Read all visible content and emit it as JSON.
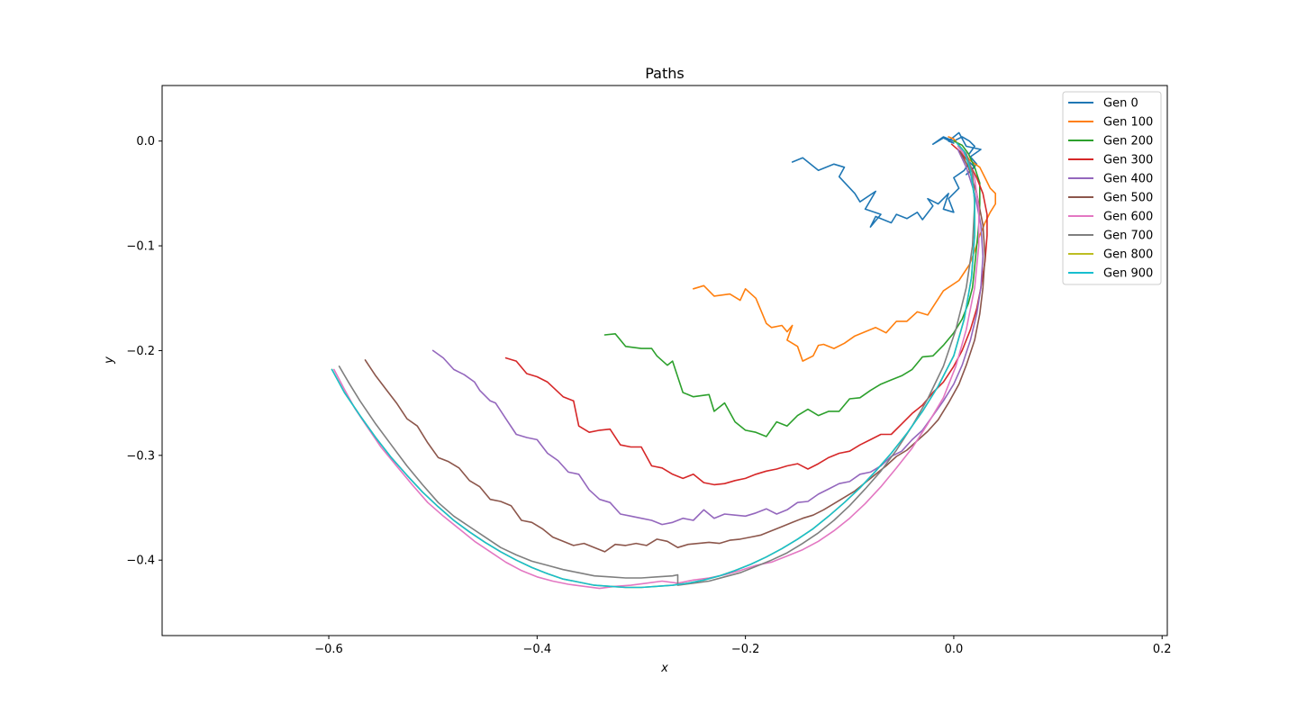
{
  "chart_data": {
    "type": "line",
    "title": "Paths",
    "xlabel": "x",
    "ylabel": "y",
    "xlim": [
      -0.76,
      0.205
    ],
    "ylim": [
      -0.472,
      0.053
    ],
    "xticks": [
      -0.6,
      -0.4,
      -0.2,
      0.0,
      0.2
    ],
    "xtick_labels": [
      "−0.6",
      "−0.4",
      "−0.2",
      "0.0",
      "0.2"
    ],
    "yticks": [
      0.0,
      -0.1,
      -0.2,
      -0.3,
      -0.4
    ],
    "ytick_labels": [
      "0.0",
      "−0.1",
      "−0.2",
      "−0.3",
      "−0.4"
    ],
    "grid": false,
    "legend_position": "top-right",
    "series": [
      {
        "name": "Gen 0",
        "color": "#1f77b4",
        "x": [
          -0.155,
          -0.145,
          -0.13,
          -0.115,
          -0.105,
          -0.11,
          -0.095,
          -0.09,
          -0.075,
          -0.085,
          -0.07,
          -0.08,
          -0.075,
          -0.06,
          -0.055,
          -0.045,
          -0.035,
          -0.03,
          -0.02,
          -0.025,
          -0.015,
          -0.005,
          -0.01,
          0.0,
          -0.005,
          0.005,
          0.0,
          0.01,
          0.015,
          0.02,
          0.012,
          0.022,
          0.016,
          0.026,
          0.012,
          0.005,
          -0.005,
          0.0,
          -0.01,
          -0.02,
          -0.01,
          0.0,
          0.008,
          0.015,
          0.02,
          0.015
        ],
        "y": [
          -0.02,
          -0.016,
          -0.028,
          -0.022,
          -0.025,
          -0.034,
          -0.05,
          -0.058,
          -0.048,
          -0.065,
          -0.07,
          -0.082,
          -0.072,
          -0.078,
          -0.07,
          -0.074,
          -0.068,
          -0.075,
          -0.062,
          -0.055,
          -0.06,
          -0.05,
          -0.065,
          -0.068,
          -0.055,
          -0.045,
          -0.035,
          -0.028,
          -0.02,
          -0.025,
          -0.032,
          -0.022,
          -0.015,
          -0.008,
          -0.005,
          0.008,
          0.0,
          -0.002,
          0.003,
          -0.003,
          0.004,
          0.0,
          0.004,
          0.0,
          -0.005,
          -0.012
        ]
      },
      {
        "name": "Gen 100",
        "color": "#ff7f0e",
        "x": [
          -0.25,
          -0.24,
          -0.23,
          -0.215,
          -0.205,
          -0.2,
          -0.19,
          -0.185,
          -0.18,
          -0.175,
          -0.165,
          -0.16,
          -0.155,
          -0.16,
          -0.15,
          -0.145,
          -0.135,
          -0.13,
          -0.125,
          -0.115,
          -0.105,
          -0.095,
          -0.085,
          -0.075,
          -0.065,
          -0.055,
          -0.045,
          -0.035,
          -0.025,
          -0.01,
          0.005,
          0.015,
          0.02,
          0.025,
          0.03,
          0.035,
          0.04,
          0.04,
          0.035,
          0.03,
          0.025,
          0.015,
          0.01,
          0.005,
          0.0,
          -0.005
        ],
        "y": [
          -0.141,
          -0.138,
          -0.148,
          -0.146,
          -0.152,
          -0.141,
          -0.15,
          -0.162,
          -0.174,
          -0.178,
          -0.176,
          -0.182,
          -0.176,
          -0.19,
          -0.196,
          -0.21,
          -0.205,
          -0.195,
          -0.194,
          -0.198,
          -0.193,
          -0.186,
          -0.182,
          -0.178,
          -0.183,
          -0.172,
          -0.172,
          -0.163,
          -0.166,
          -0.143,
          -0.133,
          -0.118,
          -0.105,
          -0.09,
          -0.078,
          -0.068,
          -0.06,
          -0.05,
          -0.045,
          -0.035,
          -0.025,
          -0.018,
          -0.01,
          -0.004,
          0.002,
          0.004
        ]
      },
      {
        "name": "Gen 200",
        "color": "#2ca02c",
        "x": [
          -0.335,
          -0.325,
          -0.315,
          -0.3,
          -0.29,
          -0.285,
          -0.275,
          -0.27,
          -0.26,
          -0.25,
          -0.235,
          -0.23,
          -0.22,
          -0.21,
          -0.2,
          -0.19,
          -0.18,
          -0.17,
          -0.16,
          -0.15,
          -0.14,
          -0.13,
          -0.12,
          -0.11,
          -0.1,
          -0.09,
          -0.08,
          -0.07,
          -0.06,
          -0.05,
          -0.04,
          -0.03,
          -0.02,
          -0.01,
          0.0,
          0.008,
          0.014,
          0.018,
          0.02,
          0.022,
          0.024,
          0.025,
          0.025,
          0.02,
          0.014,
          0.008,
          0.0
        ],
        "y": [
          -0.185,
          -0.184,
          -0.196,
          -0.198,
          -0.198,
          -0.205,
          -0.214,
          -0.21,
          -0.24,
          -0.244,
          -0.242,
          -0.258,
          -0.25,
          -0.268,
          -0.276,
          -0.278,
          -0.282,
          -0.268,
          -0.272,
          -0.262,
          -0.256,
          -0.262,
          -0.258,
          -0.258,
          -0.246,
          -0.245,
          -0.238,
          -0.232,
          -0.228,
          -0.224,
          -0.218,
          -0.206,
          -0.205,
          -0.195,
          -0.183,
          -0.17,
          -0.155,
          -0.14,
          -0.12,
          -0.1,
          -0.08,
          -0.06,
          -0.04,
          -0.025,
          -0.012,
          -0.004,
          0.0
        ]
      },
      {
        "name": "Gen 300",
        "color": "#d62728",
        "x": [
          -0.43,
          -0.42,
          -0.41,
          -0.4,
          -0.39,
          -0.375,
          -0.365,
          -0.36,
          -0.35,
          -0.34,
          -0.33,
          -0.32,
          -0.31,
          -0.3,
          -0.29,
          -0.28,
          -0.27,
          -0.26,
          -0.25,
          -0.24,
          -0.23,
          -0.22,
          -0.21,
          -0.2,
          -0.19,
          -0.18,
          -0.17,
          -0.16,
          -0.15,
          -0.14,
          -0.13,
          -0.12,
          -0.11,
          -0.1,
          -0.09,
          -0.08,
          -0.07,
          -0.06,
          -0.05,
          -0.04,
          -0.03,
          -0.02,
          -0.01,
          0.0,
          0.008,
          0.016,
          0.022,
          0.026,
          0.03,
          0.032,
          0.032,
          0.028,
          0.022,
          0.014,
          0.006,
          -0.002
        ],
        "y": [
          -0.207,
          -0.21,
          -0.222,
          -0.225,
          -0.23,
          -0.244,
          -0.248,
          -0.272,
          -0.278,
          -0.276,
          -0.275,
          -0.29,
          -0.292,
          -0.292,
          -0.31,
          -0.312,
          -0.318,
          -0.322,
          -0.318,
          -0.326,
          -0.328,
          -0.327,
          -0.324,
          -0.322,
          -0.318,
          -0.315,
          -0.313,
          -0.31,
          -0.308,
          -0.313,
          -0.308,
          -0.302,
          -0.298,
          -0.296,
          -0.29,
          -0.285,
          -0.28,
          -0.28,
          -0.27,
          -0.26,
          -0.252,
          -0.24,
          -0.23,
          -0.215,
          -0.2,
          -0.18,
          -0.16,
          -0.14,
          -0.115,
          -0.09,
          -0.07,
          -0.05,
          -0.035,
          -0.02,
          -0.01,
          -0.003
        ]
      },
      {
        "name": "Gen 400",
        "color": "#9467bd",
        "x": [
          -0.5,
          -0.49,
          -0.48,
          -0.47,
          -0.46,
          -0.455,
          -0.445,
          -0.44,
          -0.43,
          -0.42,
          -0.41,
          -0.4,
          -0.39,
          -0.38,
          -0.37,
          -0.36,
          -0.35,
          -0.34,
          -0.33,
          -0.32,
          -0.31,
          -0.3,
          -0.29,
          -0.28,
          -0.27,
          -0.26,
          -0.25,
          -0.24,
          -0.23,
          -0.22,
          -0.21,
          -0.2,
          -0.19,
          -0.18,
          -0.17,
          -0.16,
          -0.15,
          -0.14,
          -0.13,
          -0.12,
          -0.11,
          -0.1,
          -0.09,
          -0.08,
          -0.07,
          -0.06,
          -0.05,
          -0.04,
          -0.03,
          -0.02,
          -0.01,
          0.0,
          0.008,
          0.016,
          0.022,
          0.026,
          0.028,
          0.026,
          0.02,
          0.012,
          0.004
        ],
        "y": [
          -0.2,
          -0.207,
          -0.218,
          -0.223,
          -0.23,
          -0.238,
          -0.248,
          -0.25,
          -0.265,
          -0.28,
          -0.283,
          -0.285,
          -0.298,
          -0.305,
          -0.316,
          -0.318,
          -0.333,
          -0.342,
          -0.345,
          -0.356,
          -0.358,
          -0.36,
          -0.362,
          -0.366,
          -0.364,
          -0.36,
          -0.362,
          -0.352,
          -0.36,
          -0.356,
          -0.357,
          -0.358,
          -0.355,
          -0.351,
          -0.356,
          -0.352,
          -0.345,
          -0.344,
          -0.337,
          -0.332,
          -0.327,
          -0.325,
          -0.318,
          -0.316,
          -0.31,
          -0.301,
          -0.296,
          -0.285,
          -0.276,
          -0.262,
          -0.248,
          -0.232,
          -0.214,
          -0.19,
          -0.165,
          -0.14,
          -0.11,
          -0.08,
          -0.05,
          -0.025,
          -0.008
        ]
      },
      {
        "name": "Gen 500",
        "color": "#8c564b",
        "x": [
          -0.565,
          -0.555,
          -0.545,
          -0.535,
          -0.525,
          -0.515,
          -0.505,
          -0.495,
          -0.485,
          -0.475,
          -0.465,
          -0.455,
          -0.445,
          -0.435,
          -0.425,
          -0.415,
          -0.405,
          -0.395,
          -0.385,
          -0.375,
          -0.365,
          -0.355,
          -0.345,
          -0.335,
          -0.325,
          -0.315,
          -0.305,
          -0.295,
          -0.285,
          -0.275,
          -0.265,
          -0.255,
          -0.245,
          -0.235,
          -0.225,
          -0.215,
          -0.205,
          -0.195,
          -0.185,
          -0.175,
          -0.165,
          -0.155,
          -0.145,
          -0.135,
          -0.125,
          -0.115,
          -0.105,
          -0.095,
          -0.085,
          -0.075,
          -0.065,
          -0.055,
          -0.045,
          -0.035,
          -0.025,
          -0.015,
          -0.005,
          0.005,
          0.012,
          0.02,
          0.025,
          0.028,
          0.03,
          0.028,
          0.022,
          0.014,
          0.006
        ],
        "y": [
          -0.209,
          -0.224,
          -0.237,
          -0.25,
          -0.265,
          -0.272,
          -0.288,
          -0.302,
          -0.306,
          -0.312,
          -0.324,
          -0.33,
          -0.342,
          -0.344,
          -0.348,
          -0.362,
          -0.364,
          -0.37,
          -0.378,
          -0.382,
          -0.386,
          -0.384,
          -0.388,
          -0.392,
          -0.385,
          -0.386,
          -0.384,
          -0.386,
          -0.38,
          -0.382,
          -0.388,
          -0.385,
          -0.384,
          -0.383,
          -0.384,
          -0.381,
          -0.38,
          -0.378,
          -0.376,
          -0.372,
          -0.368,
          -0.364,
          -0.36,
          -0.357,
          -0.352,
          -0.346,
          -0.34,
          -0.334,
          -0.326,
          -0.318,
          -0.31,
          -0.301,
          -0.295,
          -0.286,
          -0.277,
          -0.266,
          -0.25,
          -0.232,
          -0.214,
          -0.19,
          -0.165,
          -0.14,
          -0.11,
          -0.08,
          -0.05,
          -0.025,
          -0.01
        ]
      },
      {
        "name": "Gen 600",
        "color": "#e377c2",
        "x": [
          -0.595,
          -0.585,
          -0.575,
          -0.565,
          -0.55,
          -0.535,
          -0.52,
          -0.505,
          -0.49,
          -0.475,
          -0.46,
          -0.445,
          -0.43,
          -0.415,
          -0.4,
          -0.385,
          -0.37,
          -0.355,
          -0.34,
          -0.325,
          -0.31,
          -0.295,
          -0.28,
          -0.265,
          -0.25,
          -0.235,
          -0.22,
          -0.205,
          -0.19,
          -0.175,
          -0.16,
          -0.145,
          -0.13,
          -0.115,
          -0.1,
          -0.085,
          -0.07,
          -0.055,
          -0.04,
          -0.025,
          -0.01,
          0.002,
          0.012,
          0.02,
          0.024,
          0.024,
          0.02,
          0.012,
          0.004
        ],
        "y": [
          -0.218,
          -0.237,
          -0.255,
          -0.27,
          -0.292,
          -0.31,
          -0.328,
          -0.345,
          -0.358,
          -0.37,
          -0.382,
          -0.392,
          -0.402,
          -0.41,
          -0.416,
          -0.42,
          -0.423,
          -0.425,
          -0.427,
          -0.425,
          -0.424,
          -0.422,
          -0.42,
          -0.422,
          -0.419,
          -0.417,
          -0.414,
          -0.41,
          -0.405,
          -0.402,
          -0.396,
          -0.39,
          -0.382,
          -0.372,
          -0.36,
          -0.346,
          -0.33,
          -0.312,
          -0.293,
          -0.27,
          -0.245,
          -0.215,
          -0.18,
          -0.14,
          -0.1,
          -0.065,
          -0.035,
          -0.015,
          -0.005
        ]
      },
      {
        "name": "Gen 700",
        "color": "#7f7f7f",
        "x": [
          -0.59,
          -0.58,
          -0.57,
          -0.555,
          -0.54,
          -0.525,
          -0.51,
          -0.495,
          -0.48,
          -0.465,
          -0.45,
          -0.435,
          -0.42,
          -0.405,
          -0.39,
          -0.375,
          -0.36,
          -0.345,
          -0.33,
          -0.315,
          -0.3,
          -0.285,
          -0.27,
          -0.265,
          -0.265,
          -0.25,
          -0.235,
          -0.22,
          -0.205,
          -0.19,
          -0.175,
          -0.16,
          -0.145,
          -0.13,
          -0.115,
          -0.1,
          -0.085,
          -0.07,
          -0.055,
          -0.04,
          -0.025,
          -0.01,
          0.002,
          0.012,
          0.018,
          0.02,
          0.018,
          0.012,
          0.004
        ],
        "y": [
          -0.215,
          -0.232,
          -0.248,
          -0.27,
          -0.29,
          -0.31,
          -0.328,
          -0.345,
          -0.358,
          -0.368,
          -0.378,
          -0.388,
          -0.395,
          -0.401,
          -0.405,
          -0.409,
          -0.412,
          -0.415,
          -0.416,
          -0.417,
          -0.417,
          -0.416,
          -0.415,
          -0.414,
          -0.424,
          -0.422,
          -0.42,
          -0.416,
          -0.412,
          -0.406,
          -0.4,
          -0.393,
          -0.384,
          -0.374,
          -0.362,
          -0.348,
          -0.332,
          -0.315,
          -0.295,
          -0.272,
          -0.246,
          -0.215,
          -0.18,
          -0.14,
          -0.1,
          -0.06,
          -0.03,
          -0.012,
          -0.003
        ]
      },
      {
        "name": "Gen 800",
        "color": "#bcbd22",
        "x": [
          -0.597,
          -0.585,
          -0.57,
          -0.555,
          -0.54,
          -0.525,
          -0.51,
          -0.495,
          -0.48,
          -0.465,
          -0.45,
          -0.435,
          -0.42,
          -0.405,
          -0.39,
          -0.375,
          -0.36,
          -0.345,
          -0.33,
          -0.315,
          -0.3,
          -0.285,
          -0.27,
          -0.255,
          -0.24,
          -0.225,
          -0.21,
          -0.195,
          -0.18,
          -0.165,
          -0.15,
          -0.135,
          -0.12,
          -0.105,
          -0.09,
          -0.075,
          -0.06,
          -0.045,
          -0.03,
          -0.015,
          0.0,
          0.01,
          0.017,
          0.02,
          0.02,
          0.016,
          0.01,
          0.003
        ],
        "y": [
          -0.218,
          -0.24,
          -0.262,
          -0.283,
          -0.302,
          -0.319,
          -0.335,
          -0.349,
          -0.362,
          -0.373,
          -0.383,
          -0.392,
          -0.4,
          -0.407,
          -0.413,
          -0.418,
          -0.421,
          -0.424,
          -0.425,
          -0.426,
          -0.426,
          -0.425,
          -0.424,
          -0.422,
          -0.419,
          -0.415,
          -0.41,
          -0.404,
          -0.397,
          -0.389,
          -0.38,
          -0.37,
          -0.358,
          -0.345,
          -0.331,
          -0.315,
          -0.298,
          -0.279,
          -0.258,
          -0.234,
          -0.205,
          -0.17,
          -0.13,
          -0.09,
          -0.055,
          -0.028,
          -0.01,
          -0.002
        ]
      },
      {
        "name": "Gen 900",
        "color": "#17becf",
        "x": [
          -0.597,
          -0.585,
          -0.57,
          -0.555,
          -0.54,
          -0.525,
          -0.51,
          -0.495,
          -0.48,
          -0.465,
          -0.45,
          -0.435,
          -0.42,
          -0.405,
          -0.39,
          -0.375,
          -0.36,
          -0.345,
          -0.33,
          -0.315,
          -0.3,
          -0.285,
          -0.27,
          -0.255,
          -0.24,
          -0.225,
          -0.21,
          -0.195,
          -0.18,
          -0.165,
          -0.15,
          -0.135,
          -0.12,
          -0.105,
          -0.09,
          -0.075,
          -0.06,
          -0.045,
          -0.03,
          -0.015,
          0.0,
          0.01,
          0.017,
          0.02,
          0.02,
          0.016,
          0.01,
          0.003
        ],
        "y": [
          -0.218,
          -0.24,
          -0.262,
          -0.283,
          -0.302,
          -0.319,
          -0.335,
          -0.349,
          -0.362,
          -0.373,
          -0.383,
          -0.392,
          -0.4,
          -0.407,
          -0.413,
          -0.418,
          -0.421,
          -0.424,
          -0.425,
          -0.426,
          -0.426,
          -0.425,
          -0.424,
          -0.422,
          -0.419,
          -0.415,
          -0.41,
          -0.404,
          -0.397,
          -0.389,
          -0.38,
          -0.37,
          -0.358,
          -0.345,
          -0.331,
          -0.315,
          -0.298,
          -0.279,
          -0.258,
          -0.234,
          -0.205,
          -0.17,
          -0.13,
          -0.09,
          -0.055,
          -0.028,
          -0.01,
          -0.002
        ]
      }
    ]
  }
}
